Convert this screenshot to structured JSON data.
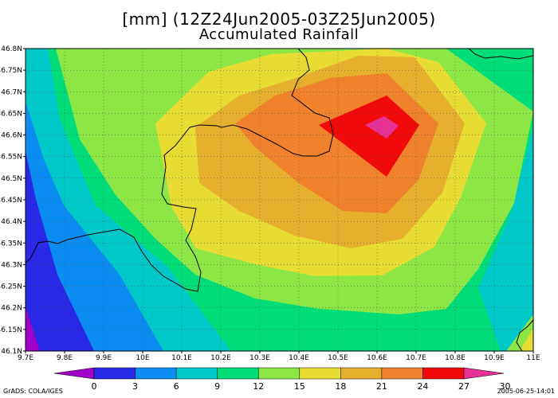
{
  "title": {
    "line1": "[mm]  (12Z24Jun2005-03Z25Jun2005)",
    "line2": "Accumulated Rainfall"
  },
  "axes": {
    "lat_labels": [
      "46.8N",
      "46.75N",
      "46.7N",
      "46.65N",
      "46.6N",
      "46.55N",
      "46.5N",
      "46.45N",
      "46.4N",
      "46.35N",
      "46.3N",
      "46.25N",
      "46.2N",
      "46.15N",
      "46.1N"
    ],
    "lon_labels": [
      "9.7E",
      "9.8E",
      "9.9E",
      "10E",
      "10.1E",
      "10.2E",
      "10.3E",
      "10.4E",
      "10.5E",
      "10.6E",
      "10.7E",
      "10.8E",
      "10.9E",
      "11E"
    ],
    "lat_values": [
      46.8,
      46.75,
      46.7,
      46.65,
      46.6,
      46.55,
      46.5,
      46.45,
      46.4,
      46.35,
      46.3,
      46.25,
      46.2,
      46.15,
      46.1
    ],
    "lon_values": [
      9.7,
      9.8,
      9.9,
      10.0,
      10.1,
      10.2,
      10.3,
      10.4,
      10.5,
      10.6,
      10.7,
      10.8,
      10.9,
      11.0
    ],
    "lon_range": [
      9.7,
      11.0
    ],
    "lat_range": [
      46.1,
      46.8
    ],
    "grid": "dotted"
  },
  "colorbar": {
    "labels": [
      "0",
      "3",
      "6",
      "9",
      "12",
      "15",
      "18",
      "21",
      "24",
      "27",
      "30"
    ],
    "colors": [
      "#a000c8",
      "#2828e6",
      "#0a8cf0",
      "#00c8c8",
      "#00dc78",
      "#8ce646",
      "#e6dc32",
      "#e6af2d",
      "#f0822d",
      "#f00a0a",
      "#e63296"
    ]
  },
  "footer": {
    "left": "GrADS: COLA/IGES",
    "right": "2005-06-25-14:01"
  }
}
